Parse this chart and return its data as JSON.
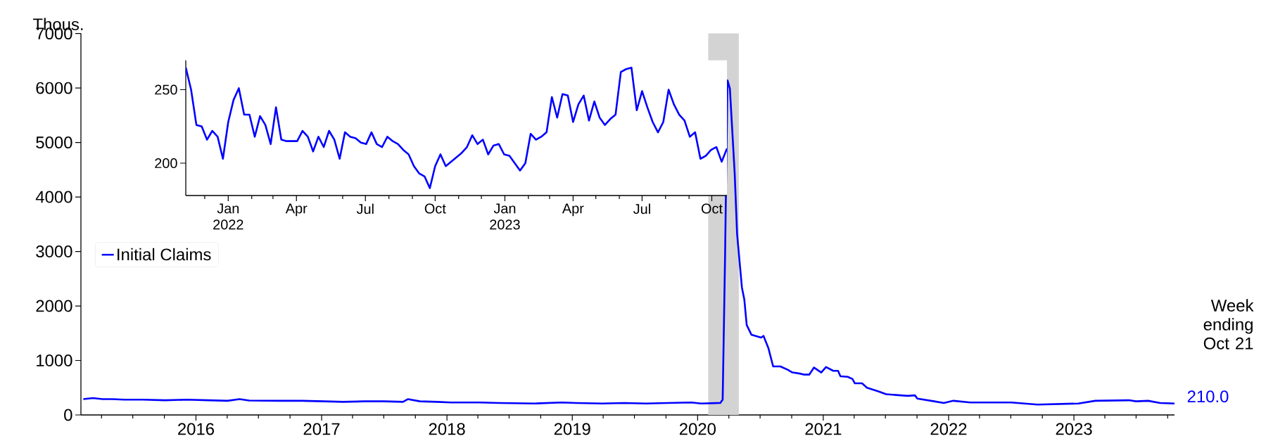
{
  "chart_data": [
    {
      "type": "line",
      "ylabel": "Thous.",
      "xlim": [
        "2015-01-31",
        "2023-10-21"
      ],
      "ylim": [
        0,
        7000
      ],
      "yticks": [
        0,
        1000,
        2000,
        3000,
        4000,
        5000,
        6000,
        7000
      ],
      "xticks": [
        {
          "value": "2015-04-01",
          "label": null
        },
        {
          "value": "2015-07-01",
          "label": null
        },
        {
          "value": "2015-10-01",
          "label": null
        },
        {
          "value": "2016-01-01",
          "label": "2016"
        },
        {
          "value": "2016-04-01",
          "label": null
        },
        {
          "value": "2016-07-01",
          "label": null
        },
        {
          "value": "2016-10-01",
          "label": null
        },
        {
          "value": "2017-01-01",
          "label": "2017"
        },
        {
          "value": "2017-04-01",
          "label": null
        },
        {
          "value": "2017-07-01",
          "label": null
        },
        {
          "value": "2017-10-01",
          "label": null
        },
        {
          "value": "2018-01-01",
          "label": "2018"
        },
        {
          "value": "2018-04-01",
          "label": null
        },
        {
          "value": "2018-07-01",
          "label": null
        },
        {
          "value": "2018-10-01",
          "label": null
        },
        {
          "value": "2019-01-01",
          "label": "2019"
        },
        {
          "value": "2019-04-01",
          "label": null
        },
        {
          "value": "2019-07-01",
          "label": null
        },
        {
          "value": "2019-10-01",
          "label": null
        },
        {
          "value": "2020-01-01",
          "label": "2020"
        },
        {
          "value": "2020-04-01",
          "label": null
        },
        {
          "value": "2020-07-01",
          "label": null
        },
        {
          "value": "2020-10-01",
          "label": null
        },
        {
          "value": "2021-01-01",
          "label": "2021"
        },
        {
          "value": "2021-04-01",
          "label": null
        },
        {
          "value": "2021-07-01",
          "label": null
        },
        {
          "value": "2021-10-01",
          "label": null
        },
        {
          "value": "2022-01-01",
          "label": "2022"
        },
        {
          "value": "2022-04-01",
          "label": null
        },
        {
          "value": "2022-07-01",
          "label": null
        },
        {
          "value": "2022-10-01",
          "label": null
        },
        {
          "value": "2023-01-01",
          "label": "2023"
        },
        {
          "value": "2023-04-01",
          "label": null
        },
        {
          "value": "2023-07-01",
          "label": null
        },
        {
          "value": "2023-10-01",
          "label": null
        }
      ],
      "legend": "left",
      "bands": [
        {
          "axis": "x",
          "from": "2020-02-01",
          "to": "2020-04-30",
          "color": "#d3d3d3"
        }
      ],
      "annotations": [
        "Week ending Oct 21",
        {
          "text": "210.0",
          "x": "2023-10-21",
          "y": 210
        }
      ],
      "series": [
        {
          "name": "Initial Claims",
          "color": "#0000ff",
          "x": [
            "2015-02-07",
            "2015-03-07",
            "2015-04-04",
            "2015-05-02",
            "2015-06-06",
            "2015-08-01",
            "2015-10-03",
            "2015-12-05",
            "2016-02-06",
            "2016-04-02",
            "2016-05-07",
            "2016-06-04",
            "2016-09-03",
            "2016-11-05",
            "2017-01-07",
            "2017-03-04",
            "2017-05-06",
            "2017-07-01",
            "2017-08-26",
            "2017-09-09",
            "2017-10-14",
            "2017-12-02",
            "2018-01-13",
            "2018-04-07",
            "2018-06-02",
            "2018-09-15",
            "2018-12-01",
            "2019-01-12",
            "2019-03-30",
            "2019-06-01",
            "2019-08-03",
            "2019-10-05",
            "2019-12-14",
            "2020-01-11",
            "2020-03-07",
            "2020-03-14",
            "2020-03-21",
            "2020-03-28",
            "2020-04-04",
            "2020-04-18",
            "2020-04-25",
            "2020-05-09",
            "2020-05-16",
            "2020-05-23",
            "2020-06-06",
            "2020-07-04",
            "2020-07-11",
            "2020-07-25",
            "2020-08-08",
            "2020-08-29",
            "2020-09-19",
            "2020-10-03",
            "2020-10-24",
            "2020-11-07",
            "2020-11-21",
            "2020-12-05",
            "2020-12-26",
            "2021-01-09",
            "2021-01-30",
            "2021-02-13",
            "2021-02-20",
            "2021-03-13",
            "2021-03-27",
            "2021-04-03",
            "2021-04-24",
            "2021-05-08",
            "2021-06-12",
            "2021-07-03",
            "2021-09-04",
            "2021-09-25",
            "2021-10-02",
            "2021-11-20",
            "2021-12-18",
            "2022-01-15",
            "2022-03-05",
            "2022-07-02",
            "2022-09-17",
            "2023-01-14",
            "2023-03-04",
            "2023-06-10",
            "2023-07-01",
            "2023-08-05",
            "2023-09-09",
            "2023-10-21"
          ],
          "values": [
            290,
            310,
            290,
            290,
            280,
            280,
            270,
            280,
            270,
            260,
            290,
            265,
            260,
            260,
            250,
            240,
            250,
            250,
            240,
            290,
            250,
            240,
            230,
            230,
            220,
            210,
            230,
            220,
            210,
            220,
            210,
            220,
            230,
            210,
            220,
            280,
            2920,
            6140,
            5990,
            4430,
            3320,
            2340,
            2120,
            1650,
            1470,
            1420,
            1450,
            1230,
            890,
            890,
            830,
            780,
            760,
            740,
            740,
            870,
            780,
            880,
            810,
            810,
            710,
            700,
            660,
            580,
            580,
            500,
            430,
            380,
            350,
            360,
            300,
            250,
            220,
            260,
            230,
            230,
            190,
            210,
            260,
            270,
            250,
            260,
            220,
            210
          ]
        }
      ]
    },
    {
      "type": "line",
      "xlim": [
        "2021-11-06",
        "2023-10-21"
      ],
      "ylim": [
        178,
        270
      ],
      "yticks": [
        200,
        250
      ],
      "xticks": [
        {
          "value": "2021-12-01",
          "label": null
        },
        {
          "value": "2022-01-01",
          "label": "Jan 2022"
        },
        {
          "value": "2022-02-01",
          "label": null
        },
        {
          "value": "2022-03-01",
          "label": null
        },
        {
          "value": "2022-04-01",
          "label": "Apr"
        },
        {
          "value": "2022-05-01",
          "label": null
        },
        {
          "value": "2022-06-01",
          "label": null
        },
        {
          "value": "2022-07-01",
          "label": "Jul"
        },
        {
          "value": "2022-08-01",
          "label": null
        },
        {
          "value": "2022-09-01",
          "label": null
        },
        {
          "value": "2022-10-01",
          "label": "Oct"
        },
        {
          "value": "2022-11-01",
          "label": null
        },
        {
          "value": "2022-12-01",
          "label": null
        },
        {
          "value": "2023-01-01",
          "label": "Jan 2023"
        },
        {
          "value": "2023-02-01",
          "label": null
        },
        {
          "value": "2023-03-01",
          "label": null
        },
        {
          "value": "2023-04-01",
          "label": "Apr"
        },
        {
          "value": "2023-05-01",
          "label": null
        },
        {
          "value": "2023-06-01",
          "label": null
        },
        {
          "value": "2023-07-01",
          "label": "Jul"
        },
        {
          "value": "2023-08-01",
          "label": null
        },
        {
          "value": "2023-09-01",
          "label": null
        },
        {
          "value": "2023-10-01",
          "label": "Oct"
        }
      ],
      "series": [
        {
          "color": "#0000ff",
          "x": [
            "2021-11-06",
            "2021-11-13",
            "2021-11-20",
            "2021-11-27",
            "2021-12-04",
            "2021-12-11",
            "2021-12-18",
            "2021-12-25",
            "2022-01-01",
            "2022-01-08",
            "2022-01-15",
            "2022-01-22",
            "2022-01-29",
            "2022-02-05",
            "2022-02-12",
            "2022-02-19",
            "2022-02-26",
            "2022-03-05",
            "2022-03-12",
            "2022-03-19",
            "2022-03-26",
            "2022-04-02",
            "2022-04-09",
            "2022-04-16",
            "2022-04-23",
            "2022-04-30",
            "2022-05-07",
            "2022-05-14",
            "2022-05-21",
            "2022-05-28",
            "2022-06-04",
            "2022-06-11",
            "2022-06-18",
            "2022-06-25",
            "2022-07-02",
            "2022-07-09",
            "2022-07-16",
            "2022-07-23",
            "2022-07-30",
            "2022-08-06",
            "2022-08-13",
            "2022-08-20",
            "2022-08-27",
            "2022-09-03",
            "2022-09-10",
            "2022-09-17",
            "2022-09-24",
            "2022-10-01",
            "2022-10-08",
            "2022-10-15",
            "2022-10-22",
            "2022-10-29",
            "2022-11-05",
            "2022-11-12",
            "2022-11-19",
            "2022-11-26",
            "2022-12-03",
            "2022-12-10",
            "2022-12-17",
            "2022-12-24",
            "2022-12-31",
            "2023-01-07",
            "2023-01-14",
            "2023-01-21",
            "2023-01-28",
            "2023-02-04",
            "2023-02-11",
            "2023-02-18",
            "2023-02-25",
            "2023-03-04",
            "2023-03-11",
            "2023-03-18",
            "2023-03-25",
            "2023-04-01",
            "2023-04-08",
            "2023-04-15",
            "2023-04-22",
            "2023-04-29",
            "2023-05-06",
            "2023-05-13",
            "2023-05-20",
            "2023-05-27",
            "2023-06-03",
            "2023-06-10",
            "2023-06-17",
            "2023-06-24",
            "2023-07-01",
            "2023-07-08",
            "2023-07-15",
            "2023-07-22",
            "2023-07-29",
            "2023-08-05",
            "2023-08-12",
            "2023-08-19",
            "2023-08-26",
            "2023-09-02",
            "2023-09-09",
            "2023-09-16",
            "2023-09-23",
            "2023-09-30",
            "2023-10-07",
            "2023-10-14",
            "2023-10-21"
          ],
          "values": [
            265,
            250,
            226,
            225,
            216,
            222,
            218,
            203,
            228,
            243,
            251,
            233,
            233,
            218,
            232,
            226,
            213,
            238,
            216,
            215,
            215,
            215,
            222,
            218,
            208,
            218,
            211,
            222,
            216,
            203,
            221,
            218,
            217,
            214,
            213,
            221,
            213,
            211,
            218,
            215,
            213,
            209,
            206,
            198,
            193,
            191,
            183,
            198,
            206,
            198,
            201,
            204,
            207,
            211,
            219,
            213,
            216,
            206,
            212,
            213,
            206,
            205,
            200,
            195,
            200,
            220,
            216,
            218,
            221,
            245,
            231,
            247,
            246,
            228,
            240,
            246,
            229,
            242,
            231,
            226,
            230,
            233,
            262,
            264,
            265,
            236,
            249,
            238,
            228,
            221,
            228,
            250,
            240,
            233,
            229,
            218,
            221,
            203,
            205,
            209,
            211,
            201,
            210
          ]
        }
      ]
    }
  ]
}
